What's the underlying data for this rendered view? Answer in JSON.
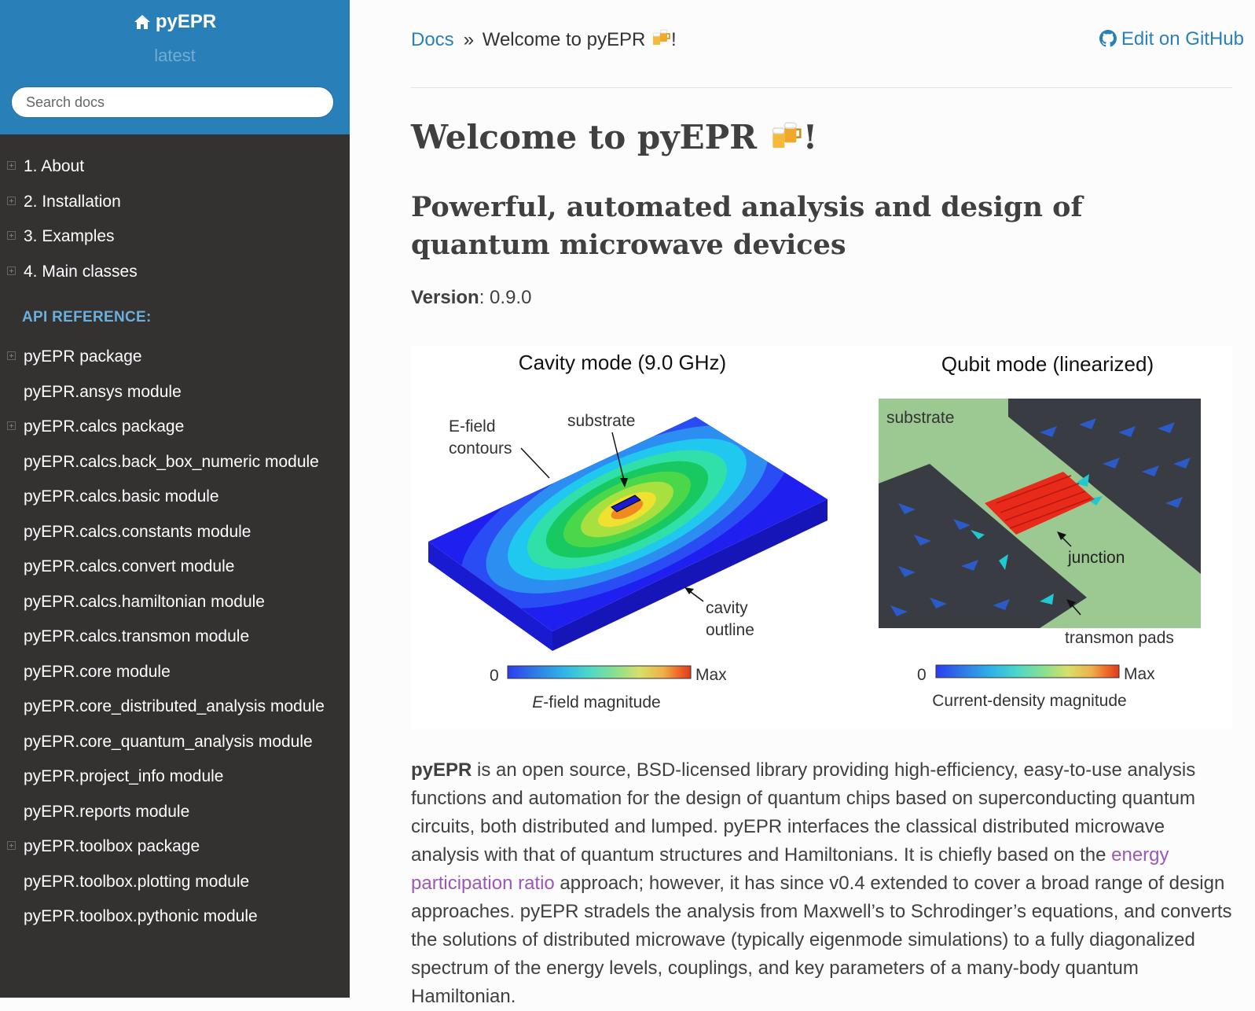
{
  "sidebar": {
    "project": "pyEPR",
    "version": "latest",
    "search_placeholder": "Search docs",
    "nav": [
      {
        "label": "1. About",
        "expandable": true
      },
      {
        "label": "2. Installation",
        "expandable": true
      },
      {
        "label": "3. Examples",
        "expandable": true
      },
      {
        "label": "4. Main classes",
        "expandable": true
      }
    ],
    "api_caption": "API REFERENCE:",
    "api": [
      {
        "label": "pyEPR package",
        "expandable": true
      },
      {
        "label": "pyEPR.ansys module",
        "expandable": false
      },
      {
        "label": "pyEPR.calcs package",
        "expandable": true
      },
      {
        "label": "pyEPR.calcs.back_box_numeric module",
        "expandable": false
      },
      {
        "label": "pyEPR.calcs.basic module",
        "expandable": false
      },
      {
        "label": "pyEPR.calcs.constants module",
        "expandable": false
      },
      {
        "label": "pyEPR.calcs.convert module",
        "expandable": false
      },
      {
        "label": "pyEPR.calcs.hamiltonian module",
        "expandable": false
      },
      {
        "label": "pyEPR.calcs.transmon module",
        "expandable": false
      },
      {
        "label": "pyEPR.core module",
        "expandable": false
      },
      {
        "label": "pyEPR.core_distributed_analysis module",
        "expandable": false
      },
      {
        "label": "pyEPR.core_quantum_analysis module",
        "expandable": false
      },
      {
        "label": "pyEPR.project_info module",
        "expandable": false
      },
      {
        "label": "pyEPR.reports module",
        "expandable": false
      },
      {
        "label": "pyEPR.toolbox package",
        "expandable": true
      },
      {
        "label": "pyEPR.toolbox.plotting module",
        "expandable": false
      },
      {
        "label": "pyEPR.toolbox.pythonic module",
        "expandable": false
      }
    ]
  },
  "breadcrumb": {
    "docs": "Docs",
    "sep": "»",
    "current": "Welcome to pyEPR",
    "suffix": "!"
  },
  "edit_link": "Edit on GitHub",
  "page": {
    "title": "Welcome to pyEPR",
    "title_suffix": "!",
    "subtitle": "Powerful, automated analysis and design of quantum microwave devices",
    "version_label": "Version",
    "version_value": ": 0.9.0"
  },
  "figure": {
    "left": {
      "title": "Cavity mode (9.0 GHz)",
      "efield": "E-field",
      "contours": "contours",
      "substrate": "substrate",
      "cavity": "cavity",
      "outline": "outline",
      "scale_min": "0",
      "scale_max": "Max",
      "caption_em": "E",
      "caption_rest": "-field magnitude"
    },
    "right": {
      "title": "Qubit mode (linearized)",
      "substrate": "substrate",
      "junction": "junction",
      "pads": "transmon pads",
      "scale_min": "0",
      "scale_max": "Max",
      "caption": "Current-density magnitude"
    },
    "colors": {
      "colormap": [
        "#2c3cf0",
        "#2f7be6",
        "#2fb2e8",
        "#4fd8c8",
        "#8fe08a",
        "#d7e06a",
        "#eeb04a",
        "#ef6a2a",
        "#e03a1e"
      ],
      "substrate": "#9cc992",
      "pads": "#3a3c44"
    }
  },
  "paragraph": {
    "lead": "pyEPR",
    "p1": " is an open source, BSD-licensed library providing high-efficiency, easy-to-use analysis functions and automation for the design of quantum chips based on superconducting quantum circuits, both distributed and lumped. pyEPR interfaces the classical distributed microwave analysis with that of quantum structures and Hamiltonians. It is chiefly based on the ",
    "link": "energy participation ratio",
    "p2": " approach; however, it has since v0.4 extended to cover a broad range of design approaches. pyEPR stradels the analysis from Maxwell’s to Schrodinger’s equations, and converts the solutions of distributed microwave (typically eigenmode simulations) to a fully diagonalized spectrum of the energy levels, couplings, and key parameters of a many-body quantum Hamiltonian."
  }
}
